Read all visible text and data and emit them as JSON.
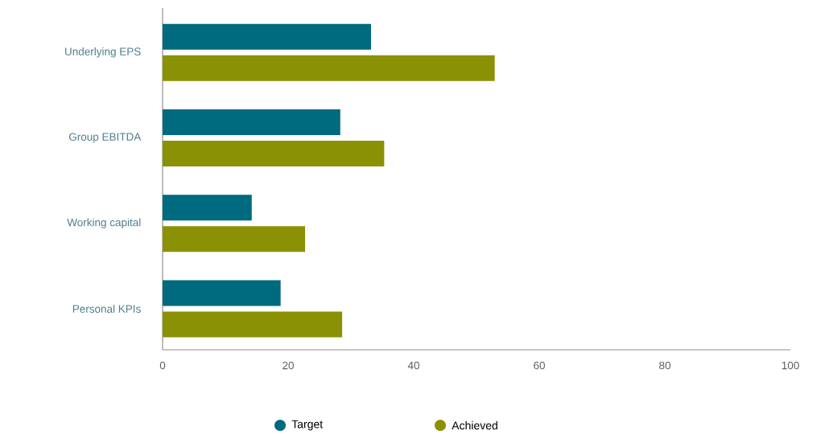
{
  "chart_data": {
    "type": "bar",
    "orientation": "horizontal",
    "categories": [
      "Underlying EPS",
      "Group EBITDA",
      "Working capital",
      "Personal KPIs"
    ],
    "series": [
      {
        "name": "Target",
        "color": "#006a7e",
        "values": [
          33.2,
          28.3,
          14.2,
          18.8
        ]
      },
      {
        "name": "Achieved",
        "color": "#8b9104",
        "values": [
          52.9,
          35.3,
          22.7,
          28.6
        ]
      }
    ],
    "xlim": [
      0,
      100
    ],
    "xticks": [
      0,
      20,
      40,
      60,
      80,
      100
    ],
    "grid": false,
    "legend": "bottom"
  }
}
